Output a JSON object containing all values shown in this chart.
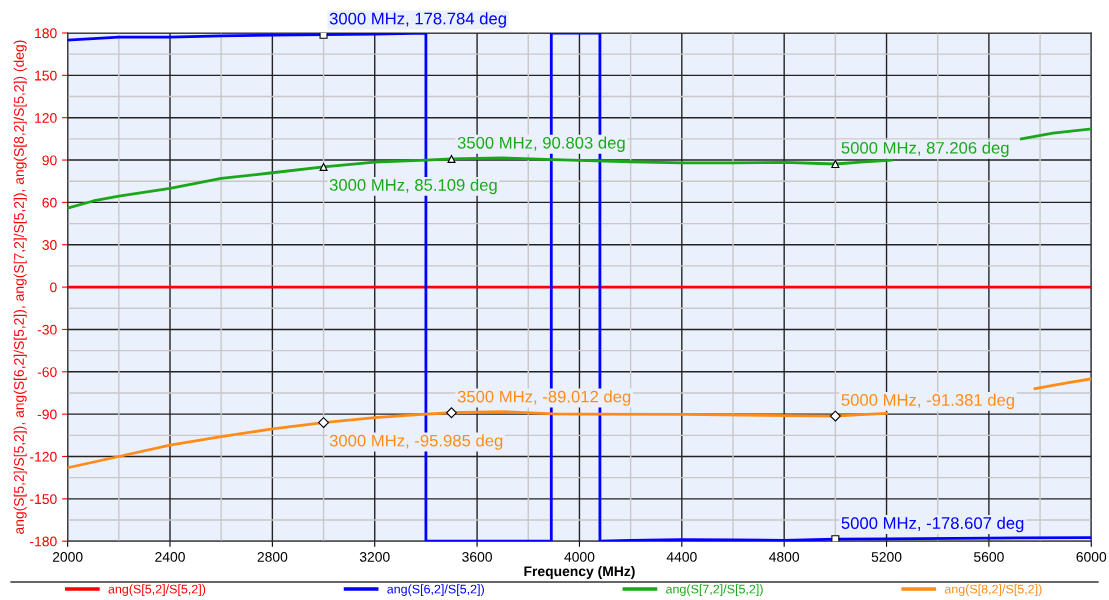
{
  "chart_data": {
    "type": "line",
    "xlabel": "Frequency (MHz)",
    "ylabel": "ang(S[5,2]/S[5,2]), ang(S[6,2]/S[5,2]), ang(S[7,2]/S[5,2]), ang(S[8,2]/S[5,2]) (deg)",
    "xlim": [
      2000,
      6000
    ],
    "xticks": [
      2000,
      2400,
      2800,
      3200,
      3600,
      4000,
      4400,
      4800,
      5200,
      5600,
      6000
    ],
    "ylim": [
      -180,
      180
    ],
    "yticks": [
      -180,
      -150,
      -120,
      -90,
      -60,
      -30,
      0,
      30,
      60,
      90,
      120,
      150,
      180
    ],
    "grid": true,
    "legend": "bottom",
    "marker": "none",
    "line_style": "solid",
    "series": [
      {
        "name": "ang(S[5,2]/S[5,2])",
        "color": "#ff0000",
        "x": [
          2000,
          6000
        ],
        "values": [
          0,
          0
        ]
      },
      {
        "name": "ang(S[6,2]/S[5,2])",
        "color": "#0000ff",
        "x": [
          2000,
          2100,
          2200,
          2400,
          2600,
          2800,
          3000,
          3200,
          3400,
          3400,
          3600,
          3890,
          3890,
          4080,
          4080,
          4200,
          4400,
          4600,
          4800,
          5000,
          5200,
          5600,
          6000
        ],
        "values": [
          175,
          176,
          177,
          177,
          178,
          178.5,
          178.784,
          179.3,
          179.9,
          -179.9,
          -179.9,
          -179.9,
          179.9,
          179.9,
          -179.9,
          -179.4,
          -178.9,
          -179.0,
          -179.5,
          -178.607,
          -178.3,
          -177.8,
          -177.5
        ]
      },
      {
        "name": "ang(S[7,2]/S[5,2])",
        "color": "#1aa81a",
        "x": [
          2000,
          2100,
          2200,
          2400,
          2600,
          2800,
          3000,
          3200,
          3400,
          3500,
          3700,
          3900,
          4000,
          4200,
          4400,
          4600,
          4800,
          5000,
          5100,
          5220,
          5500,
          5727,
          5850,
          6000
        ],
        "values": [
          56,
          61,
          64.5,
          70,
          77,
          81,
          85.109,
          88.5,
          90,
          90.803,
          91.5,
          90.3,
          89.8,
          88.8,
          88,
          88,
          88.3,
          87.206,
          88.5,
          90,
          null,
          105,
          109,
          112
        ]
      },
      {
        "name": "ang(S[8,2]/S[5,2])",
        "color": "#ff8c1a",
        "x": [
          2000,
          2200,
          2400,
          2600,
          2800,
          3000,
          3200,
          3400,
          3500,
          3700,
          3900,
          4000,
          4400,
          4800,
          5000,
          5100,
          5200,
          5500,
          5780,
          5900,
          6000
        ],
        "values": [
          -128,
          -120,
          -112,
          -106,
          -100.5,
          -95.985,
          -92.5,
          -90,
          -89.012,
          -88.2,
          -89.8,
          -90,
          -90.1,
          -91,
          -91.381,
          -90.3,
          -89.5,
          null,
          -72,
          -68,
          -65
        ]
      }
    ],
    "annotations": [
      {
        "text": "3000 MHz, 178.784 deg",
        "x": 3000,
        "y": 178.784
      },
      {
        "text": "3000 MHz, 85.109 deg",
        "x": 3000,
        "y": 85.109
      },
      {
        "text": "3500 MHz, 90.803 deg",
        "x": 3500,
        "y": 90.803
      },
      {
        "text": "5000 MHz, 87.206 deg",
        "x": 5000,
        "y": 87.206
      },
      {
        "text": "3000 MHz, -95.985 deg",
        "x": 3000,
        "y": -95.985
      },
      {
        "text": "3500 MHz, -89.012 deg",
        "x": 3500,
        "y": -89.012
      },
      {
        "text": "5000 MHz, -91.381 deg",
        "x": 5000,
        "y": -91.381
      },
      {
        "text": "5000 MHz, -178.607 deg",
        "x": 5000,
        "y": -178.607
      }
    ]
  }
}
